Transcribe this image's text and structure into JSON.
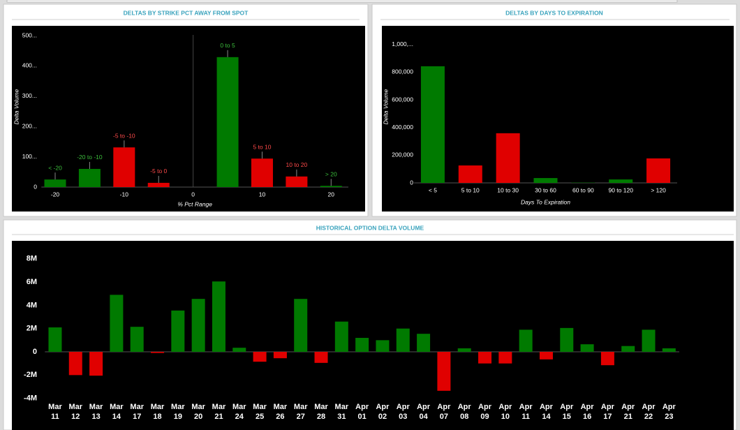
{
  "chart_data": [
    {
      "type": "bar",
      "title": "DELTAS BY STRIKE PCT AWAY FROM SPOT",
      "x_label": "% Pct Range",
      "y_label": "Delta Volume",
      "categories": [
        "< -20",
        "-20 to -10",
        "-5 to -10",
        "-5 to 0",
        "0 to 5",
        "5 to 10",
        "10 to 20",
        "> 20"
      ],
      "x": [
        -20,
        -15,
        -10,
        -5,
        5,
        10,
        15,
        20
      ],
      "values": [
        25000,
        60000,
        131000,
        14000,
        429000,
        94000,
        35000,
        4000
      ],
      "colors": [
        "#007a00",
        "#007a00",
        "#e00000",
        "#e00000",
        "#007a00",
        "#e00000",
        "#e00000",
        "#007a00"
      ],
      "category_labels": "above",
      "xlim": [
        -22,
        22.5
      ],
      "xticks": [
        -20,
        -10,
        0,
        10,
        20
      ],
      "ylim": [
        0,
        530000
      ],
      "yticks": [
        0,
        {
          "value": 100000,
          "label": "100..."
        },
        {
          "value": 200000,
          "label": "200..."
        },
        {
          "value": 300000,
          "label": "300..."
        },
        {
          "value": 400000,
          "label": "400..."
        },
        {
          "value": 500000,
          "label": "500..."
        }
      ],
      "grid": false
    },
    {
      "type": "bar",
      "title": "DELTAS BY DAYS TO EXPIRATION",
      "x_label": "Days To Expiration",
      "y_label": "Delta Volume",
      "categories": [
        "< 5",
        "5 to 10",
        "10 to 30",
        "30 to 60",
        "60 to 90",
        "90 to 120",
        "> 120"
      ],
      "values": [
        843000,
        126000,
        359000,
        35000,
        2000,
        25000,
        177000
      ],
      "colors": [
        "#007a00",
        "#e00000",
        "#e00000",
        "#007a00",
        "#007a00",
        "#007a00",
        "#e00000"
      ],
      "category_labels": "axis",
      "ylim": [
        0,
        1100000
      ],
      "yticks": [
        0,
        {
          "value": 200000,
          "label": "200,000"
        },
        {
          "value": 400000,
          "label": "400,000"
        },
        {
          "value": 600000,
          "label": "600,000"
        },
        {
          "value": 800000,
          "label": "800,000"
        },
        {
          "value": 1000000,
          "label": "1,000,..."
        }
      ],
      "grid": false
    },
    {
      "type": "bar",
      "title": "HISTORICAL OPTION DELTA VOLUME",
      "categories": [
        "Mar 11",
        "Mar 12",
        "Mar 13",
        "Mar 14",
        "Mar 17",
        "Mar 18",
        "Mar 19",
        "Mar 20",
        "Mar 21",
        "Mar 24",
        "Mar 25",
        "Mar 26",
        "Mar 27",
        "Mar 28",
        "Mar 31",
        "Apr 01",
        "Apr 02",
        "Apr 03",
        "Apr 04",
        "Apr 07",
        "Apr 08",
        "Apr 09",
        "Apr 10",
        "Apr 11",
        "Apr 14",
        "Apr 15",
        "Apr 16",
        "Apr 17",
        "Apr 21",
        "Apr 22",
        "Apr 23"
      ],
      "values": [
        2100000,
        -2000000,
        -2050000,
        4900000,
        2150000,
        -100000,
        3550000,
        4550000,
        6050000,
        350000,
        -850000,
        -550000,
        4550000,
        -950000,
        2600000,
        1200000,
        1000000,
        2000000,
        1550000,
        -3350000,
        300000,
        -1000000,
        -1000000,
        1900000,
        -650000,
        2050000,
        650000,
        -1150000,
        500000,
        1900000,
        300000
      ],
      "color": "#007a00",
      "negative_color": "#e00000",
      "category_labels": "axis",
      "ylim": [
        -4500000,
        9200000
      ],
      "yticks": [
        {
          "value": -4000000,
          "label": "-4M"
        },
        {
          "value": -2000000,
          "label": "-2M"
        },
        0,
        {
          "value": 2000000,
          "label": "2M"
        },
        {
          "value": 4000000,
          "label": "4M"
        },
        {
          "value": 6000000,
          "label": "6M"
        },
        {
          "value": 8000000,
          "label": "8M"
        }
      ],
      "grid": false
    }
  ]
}
